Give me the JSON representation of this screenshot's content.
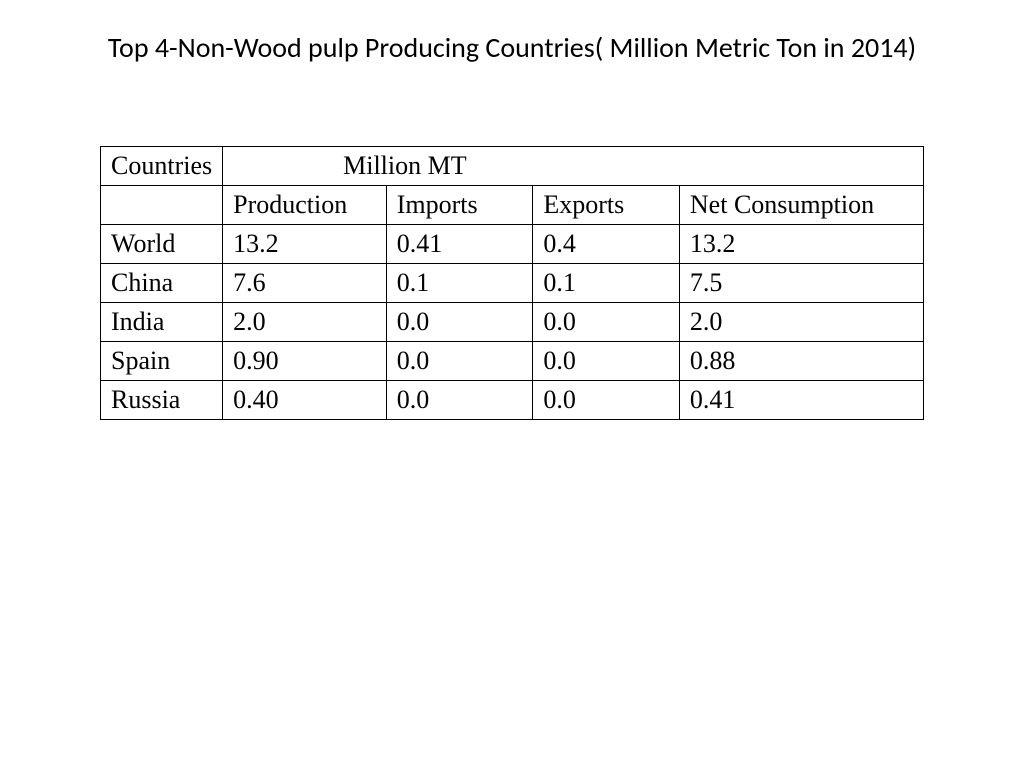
{
  "title": "Top 4-Non-Wood pulp Producing Countries( Million Metric Ton in 2014)",
  "table": {
    "header_row1": {
      "countries": "Countries",
      "million_mt": "Million MT"
    },
    "header_row2": {
      "blank": "",
      "production": "Production",
      "imports": "Imports",
      "exports": "Exports",
      "net_consumption": "Net Consumption"
    },
    "rows": [
      {
        "country": "World",
        "production": "13.2",
        "imports": "0.41",
        "exports": "0.4",
        "net_consumption": "13.2"
      },
      {
        "country": "China",
        "production": "7.6",
        "imports": "0.1",
        "exports": "0.1",
        "net_consumption": "7.5"
      },
      {
        "country": "India",
        "production": "2.0",
        "imports": "0.0",
        "exports": "0.0",
        "net_consumption": "2.0"
      },
      {
        "country": "Spain",
        "production": "0.90",
        "imports": "0.0",
        "exports": "0.0",
        "net_consumption": "0.88"
      },
      {
        "country": "Russia",
        "production": "0.40",
        "imports": "0.0",
        "exports": "0.0",
        "net_consumption": "0.41"
      }
    ],
    "styling": {
      "border_color": "#000000",
      "border_width": 1.5,
      "background_color": "#ffffff",
      "font_family": "Times New Roman",
      "font_size": 26,
      "text_color": "#000000"
    }
  },
  "page": {
    "background_color": "#ffffff",
    "title_font_family": "Calibri",
    "title_font_size": 28,
    "title_color": "#000000"
  }
}
